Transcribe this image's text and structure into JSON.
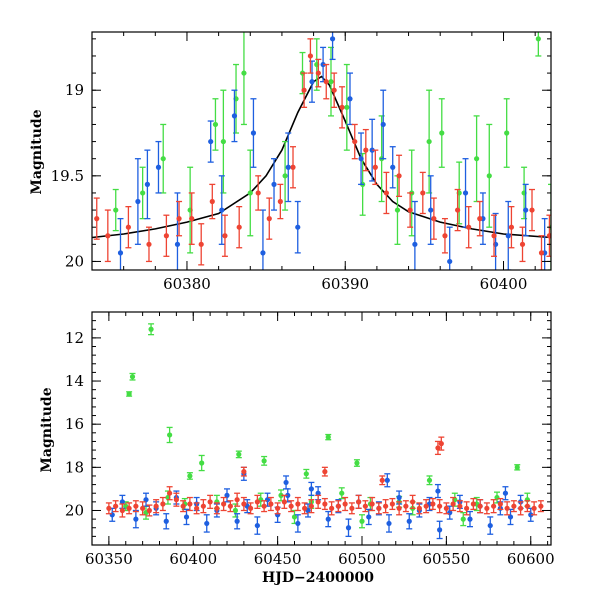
{
  "colors": {
    "green": "#44dd44",
    "blue": "#1e5fe0",
    "red": "#ee4433",
    "model": "#000000",
    "frame": "#000000"
  },
  "chart_data": [
    {
      "type": "scatter",
      "title": "",
      "xlabel": "",
      "ylabel": "Magnitude",
      "xlim": [
        60374,
        60403
      ],
      "ylim": [
        20.05,
        18.66
      ],
      "y_inverted": true,
      "grid": false,
      "x_ticks": [
        {
          "value": 60380,
          "label": "60380"
        },
        {
          "value": 60390,
          "label": "60390"
        },
        {
          "value": 60400,
          "label": "60400"
        }
      ],
      "y_ticks": [
        {
          "value": 19,
          "label": "19"
        },
        {
          "value": 19.5,
          "label": "19.5"
        },
        {
          "value": 20,
          "label": "20"
        }
      ],
      "model_curve": {
        "x": [
          60374,
          60376,
          60378,
          60380,
          60382,
          60384,
          60385,
          60386,
          60387,
          60388,
          60388.5,
          60389,
          60390,
          60391,
          60392,
          60393,
          60394,
          60396,
          60398,
          60400,
          60403
        ],
        "y": [
          19.86,
          19.84,
          19.81,
          19.77,
          19.72,
          19.6,
          19.5,
          19.35,
          19.13,
          18.95,
          18.92,
          18.97,
          19.18,
          19.4,
          19.55,
          19.65,
          19.71,
          19.77,
          19.81,
          19.84,
          19.86
        ]
      },
      "series": [
        {
          "color": "green",
          "x": [
            60375.5,
            60377.2,
            60378.5,
            60380.2,
            60381.8,
            60382.3,
            60383.1,
            60383.6,
            60384.0,
            60386.2,
            60387.3,
            60388.2,
            60389.1,
            60390.1,
            60391.1,
            60392.3,
            60393.3,
            60394.2,
            60395.3,
            60396.1,
            60397.2,
            60398.3,
            60399.1,
            60400.2,
            60401.3,
            60402.2,
            60403.0
          ],
          "y": [
            19.7,
            19.6,
            19.4,
            19.7,
            19.2,
            19.3,
            19.05,
            18.9,
            19.6,
            19.5,
            18.9,
            18.85,
            18.95,
            19.1,
            19.55,
            19.4,
            19.7,
            19.6,
            19.3,
            19.25,
            19.6,
            19.4,
            19.5,
            19.25,
            19.6,
            18.7,
            19.8
          ],
          "err": [
            0.12,
            0.15,
            0.2,
            0.25,
            0.15,
            0.3,
            0.2,
            0.3,
            0.25,
            0.2,
            0.12,
            0.15,
            0.2,
            0.25,
            0.18,
            0.25,
            0.2,
            0.25,
            0.3,
            0.2,
            0.18,
            0.25,
            0.3,
            0.2,
            0.15,
            0.1,
            0.25
          ]
        },
        {
          "color": "blue",
          "x": [
            60375.8,
            60376.9,
            60377.5,
            60378.2,
            60379.4,
            60381.5,
            60382.2,
            60383.0,
            60384.2,
            60384.8,
            60385.5,
            60386.4,
            60387.0,
            60387.9,
            60388.6,
            60389.2,
            60390.3,
            60391.0,
            60391.7,
            60392.4,
            60393.0,
            60394.4,
            60395.4,
            60396.6,
            60397.6,
            60398.7,
            60399.5,
            60400.3,
            60401.4,
            60402.6
          ],
          "y": [
            19.95,
            19.65,
            19.55,
            19.45,
            19.9,
            19.3,
            19.7,
            19.15,
            19.25,
            19.95,
            19.55,
            19.45,
            19.8,
            18.95,
            18.85,
            18.7,
            19.05,
            19.4,
            19.35,
            19.2,
            19.45,
            19.9,
            19.7,
            20.0,
            19.6,
            19.75,
            19.9,
            19.85,
            19.7,
            19.95
          ],
          "err": [
            0.2,
            0.25,
            0.2,
            0.15,
            0.3,
            0.12,
            0.2,
            0.15,
            0.2,
            0.25,
            0.15,
            0.2,
            0.15,
            0.12,
            0.1,
            0.12,
            0.15,
            0.15,
            0.18,
            0.2,
            0.12,
            0.25,
            0.2,
            0.2,
            0.2,
            0.15,
            0.18,
            0.2,
            0.15,
            0.2
          ]
        },
        {
          "color": "red",
          "x": [
            60374.3,
            60375.0,
            60376.3,
            60377.6,
            60378.7,
            60379.5,
            60380.3,
            60380.9,
            60381.6,
            60382.4,
            60383.3,
            60384.5,
            60385.2,
            60385.9,
            60386.7,
            60387.4,
            60387.8,
            60388.3,
            60388.8,
            60389.3,
            60389.8,
            60390.6,
            60391.3,
            60391.9,
            60392.6,
            60393.4,
            60394.1,
            60394.9,
            60395.6,
            60396.3,
            60397.1,
            60397.8,
            60398.5,
            60399.4,
            60400.5,
            60401.2,
            60401.8,
            60402.4,
            60402.9
          ],
          "y": [
            19.75,
            19.85,
            19.8,
            19.9,
            19.85,
            19.75,
            19.75,
            19.9,
            19.65,
            19.85,
            19.8,
            19.6,
            19.75,
            19.65,
            19.45,
            19.0,
            18.8,
            18.9,
            18.95,
            19.0,
            19.1,
            19.3,
            19.35,
            19.45,
            19.6,
            19.5,
            19.7,
            19.6,
            19.75,
            19.85,
            19.7,
            19.8,
            19.75,
            19.85,
            19.8,
            19.9,
            19.7,
            19.95,
            19.85
          ],
          "err": [
            0.12,
            0.15,
            0.12,
            0.1,
            0.12,
            0.1,
            0.15,
            0.12,
            0.1,
            0.12,
            0.12,
            0.1,
            0.12,
            0.1,
            0.12,
            0.1,
            0.1,
            0.08,
            0.1,
            0.1,
            0.12,
            0.1,
            0.12,
            0.1,
            0.12,
            0.12,
            0.1,
            0.12,
            0.12,
            0.1,
            0.12,
            0.12,
            0.1,
            0.12,
            0.12,
            0.1,
            0.12,
            0.1,
            0.12
          ]
        }
      ]
    },
    {
      "type": "scatter",
      "title": "",
      "xlabel": "HJD−2400000",
      "ylabel": "Magnitude",
      "xlim": [
        60340,
        60612
      ],
      "ylim": [
        21.6,
        10.8
      ],
      "y_inverted": true,
      "grid": false,
      "x_ticks": [
        {
          "value": 60350,
          "label": "60350"
        },
        {
          "value": 60400,
          "label": "60400"
        },
        {
          "value": 60450,
          "label": "60450"
        },
        {
          "value": 60500,
          "label": "60500"
        },
        {
          "value": 60550,
          "label": "60550"
        },
        {
          "value": 60600,
          "label": "60600"
        }
      ],
      "y_ticks": [
        {
          "value": 12,
          "label": "12"
        },
        {
          "value": 14,
          "label": "14"
        },
        {
          "value": 16,
          "label": "16"
        },
        {
          "value": 18,
          "label": "18"
        },
        {
          "value": 20,
          "label": "20"
        }
      ],
      "series": [
        {
          "color": "green",
          "x": [
            60375,
            60364,
            60362,
            60386,
            60405,
            60427,
            60442,
            60467,
            60480,
            60497,
            60592,
            60398,
            60385,
            60414,
            60440,
            60452,
            60470,
            60488,
            60505,
            60522,
            60540,
            60555,
            60568,
            60580,
            60598,
            60360,
            60372,
            60395,
            60425,
            60460,
            60500,
            60530,
            60560
          ],
          "y": [
            11.6,
            13.8,
            14.6,
            16.5,
            17.8,
            17.4,
            17.7,
            18.3,
            16.6,
            17.8,
            18.0,
            18.4,
            19.4,
            19.6,
            19.5,
            19.3,
            19.6,
            19.2,
            19.7,
            19.6,
            18.6,
            19.5,
            19.7,
            19.4,
            19.5,
            19.8,
            20.1,
            19.7,
            20.0,
            20.3,
            20.5,
            19.9,
            20.4
          ],
          "err": [
            0.25,
            0.15,
            0.1,
            0.35,
            0.35,
            0.15,
            0.2,
            0.2,
            0.12,
            0.15,
            0.12,
            0.15,
            0.3,
            0.3,
            0.3,
            0.25,
            0.3,
            0.25,
            0.3,
            0.25,
            0.2,
            0.3,
            0.3,
            0.25,
            0.3,
            0.2,
            0.3,
            0.25,
            0.3,
            0.3,
            0.3,
            0.3,
            0.3
          ]
        },
        {
          "color": "blue",
          "x": [
            60352,
            60358,
            60366,
            60372,
            60378,
            60384,
            60390,
            60396,
            60402,
            60408,
            60414,
            60420,
            60426,
            60432,
            60438,
            60444,
            60450,
            60456,
            60462,
            60468,
            60474,
            60480,
            60486,
            60492,
            60498,
            60504,
            60510,
            60516,
            60522,
            60528,
            60534,
            60540,
            60546,
            60552,
            60558,
            60564,
            60570,
            60576,
            60582,
            60588,
            60594,
            60600,
            60430,
            60455,
            60470,
            60515,
            60545,
            60585
          ],
          "y": [
            20.2,
            19.6,
            20.4,
            19.5,
            19.9,
            20.5,
            19.4,
            20.3,
            19.7,
            20.6,
            20.0,
            19.3,
            20.5,
            19.8,
            20.7,
            19.5,
            20.2,
            19.3,
            20.6,
            20.0,
            19.2,
            20.4,
            19.8,
            20.8,
            19.6,
            20.3,
            19.9,
            20.6,
            19.4,
            20.5,
            20.0,
            19.7,
            20.9,
            20.1,
            19.6,
            20.4,
            19.8,
            20.7,
            19.9,
            20.3,
            19.6,
            20.2,
            18.3,
            18.7,
            19.0,
            18.6,
            19.1,
            19.2
          ],
          "err": [
            0.3,
            0.3,
            0.4,
            0.3,
            0.3,
            0.35,
            0.3,
            0.35,
            0.3,
            0.4,
            0.3,
            0.3,
            0.35,
            0.3,
            0.4,
            0.3,
            0.35,
            0.3,
            0.4,
            0.3,
            0.3,
            0.35,
            0.3,
            0.4,
            0.3,
            0.35,
            0.3,
            0.4,
            0.3,
            0.35,
            0.3,
            0.3,
            0.4,
            0.3,
            0.3,
            0.35,
            0.3,
            0.4,
            0.3,
            0.35,
            0.3,
            0.3,
            0.3,
            0.3,
            0.3,
            0.3,
            0.3,
            0.3
          ]
        },
        {
          "color": "red",
          "x": [
            60350,
            60354,
            60358,
            60362,
            60366,
            60370,
            60374,
            60378,
            60382,
            60386,
            60390,
            60394,
            60398,
            60402,
            60406,
            60410,
            60414,
            60418,
            60422,
            60426,
            60430,
            60434,
            60438,
            60442,
            60446,
            60450,
            60454,
            60458,
            60462,
            60466,
            60470,
            60474,
            60478,
            60482,
            60486,
            60490,
            60494,
            60498,
            60502,
            60506,
            60510,
            60514,
            60518,
            60522,
            60526,
            60530,
            60534,
            60538,
            60542,
            60546,
            60550,
            60554,
            60558,
            60562,
            60566,
            60570,
            60574,
            60578,
            60582,
            60586,
            60590,
            60594,
            60598,
            60602,
            60606,
            60430,
            60478,
            60512,
            60545,
            60547
          ],
          "y": [
            19.9,
            19.8,
            20.0,
            19.9,
            19.8,
            19.9,
            20.0,
            19.8,
            19.7,
            19.2,
            19.5,
            19.8,
            19.7,
            19.9,
            19.8,
            19.6,
            19.9,
            19.7,
            19.8,
            19.5,
            19.7,
            19.9,
            19.6,
            19.8,
            19.7,
            19.9,
            19.6,
            19.8,
            19.7,
            19.9,
            19.8,
            19.6,
            19.7,
            19.9,
            19.8,
            19.7,
            19.9,
            19.6,
            19.8,
            19.7,
            19.9,
            19.8,
            19.7,
            19.9,
            19.8,
            19.6,
            19.9,
            19.8,
            19.7,
            19.8,
            19.9,
            19.7,
            19.8,
            19.9,
            19.7,
            19.8,
            19.9,
            19.8,
            19.7,
            19.9,
            19.8,
            19.9,
            19.8,
            19.9,
            19.8,
            18.2,
            18.2,
            18.6,
            17.1,
            16.9
          ],
          "err": [
            0.25,
            0.25,
            0.3,
            0.25,
            0.25,
            0.3,
            0.25,
            0.3,
            0.3,
            0.3,
            0.3,
            0.25,
            0.3,
            0.25,
            0.3,
            0.3,
            0.25,
            0.3,
            0.25,
            0.3,
            0.3,
            0.25,
            0.3,
            0.25,
            0.3,
            0.25,
            0.3,
            0.25,
            0.3,
            0.25,
            0.3,
            0.3,
            0.25,
            0.3,
            0.25,
            0.3,
            0.25,
            0.3,
            0.25,
            0.3,
            0.25,
            0.3,
            0.25,
            0.3,
            0.25,
            0.3,
            0.25,
            0.3,
            0.25,
            0.3,
            0.25,
            0.3,
            0.25,
            0.3,
            0.25,
            0.3,
            0.25,
            0.3,
            0.25,
            0.3,
            0.25,
            0.3,
            0.25,
            0.3,
            0.25,
            0.2,
            0.2,
            0.2,
            0.3,
            0.3
          ]
        }
      ]
    }
  ]
}
